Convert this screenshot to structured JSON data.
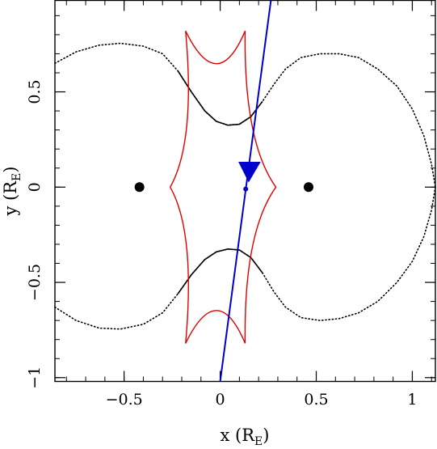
{
  "chart_data": {
    "type": "line",
    "xlabel": {
      "main": "x (R",
      "sub": "E",
      "close": ")"
    },
    "ylabel": {
      "main": "y (R",
      "sub": "E",
      "close": ")"
    },
    "xlim": [
      -0.86,
      1.12
    ],
    "ylim": [
      -1.02,
      0.98
    ],
    "x_ticks": [
      {
        "value": -0.5,
        "label": "−0.5"
      },
      {
        "value": 0,
        "label": "0"
      },
      {
        "value": 0.5,
        "label": "0.5"
      },
      {
        "value": 1,
        "label": "1"
      }
    ],
    "y_ticks": [
      {
        "value": -1,
        "label": "−1"
      },
      {
        "value": -0.5,
        "label": "−0.5"
      },
      {
        "value": 0,
        "label": "0"
      },
      {
        "value": 0.5,
        "label": "0.5"
      }
    ],
    "x_minor_step": 0.1,
    "y_minor_step": 0.1,
    "grid": false,
    "legend": "none",
    "colors": {
      "critical_curve": "#000000",
      "caustic": "#dd0000",
      "trajectory": "#0000cc",
      "lens": "#000000"
    },
    "lens_masses": [
      {
        "x": -0.42,
        "y": 0.0
      },
      {
        "x": 0.46,
        "y": 0.0
      }
    ],
    "critical_curve_upper": [
      [
        -0.86,
        0.65
      ],
      [
        -0.75,
        0.71
      ],
      [
        -0.63,
        0.745
      ],
      [
        -0.52,
        0.755
      ],
      [
        -0.4,
        0.74
      ],
      [
        -0.3,
        0.7
      ],
      [
        -0.22,
        0.61
      ],
      [
        -0.15,
        0.5
      ],
      [
        -0.08,
        0.4
      ],
      [
        -0.02,
        0.345
      ],
      [
        0.04,
        0.325
      ],
      [
        0.1,
        0.33
      ],
      [
        0.16,
        0.37
      ],
      [
        0.22,
        0.45
      ],
      [
        0.28,
        0.54
      ],
      [
        0.34,
        0.62
      ],
      [
        0.42,
        0.68
      ],
      [
        0.52,
        0.7
      ],
      [
        0.62,
        0.7
      ],
      [
        0.72,
        0.68
      ],
      [
        0.82,
        0.62
      ],
      [
        0.92,
        0.53
      ],
      [
        1.0,
        0.41
      ],
      [
        1.06,
        0.27
      ],
      [
        1.1,
        0.12
      ],
      [
        1.12,
        0.0
      ]
    ],
    "critical_curve_lower": [
      [
        -0.86,
        -0.63
      ],
      [
        -0.75,
        -0.7
      ],
      [
        -0.63,
        -0.74
      ],
      [
        -0.52,
        -0.745
      ],
      [
        -0.4,
        -0.72
      ],
      [
        -0.3,
        -0.66
      ],
      [
        -0.22,
        -0.56
      ],
      [
        -0.15,
        -0.46
      ],
      [
        -0.08,
        -0.38
      ],
      [
        -0.02,
        -0.34
      ],
      [
        0.04,
        -0.325
      ],
      [
        0.1,
        -0.33
      ],
      [
        0.16,
        -0.37
      ],
      [
        0.22,
        -0.45
      ],
      [
        0.28,
        -0.55
      ],
      [
        0.34,
        -0.63
      ],
      [
        0.42,
        -0.685
      ],
      [
        0.52,
        -0.7
      ],
      [
        0.62,
        -0.69
      ],
      [
        0.72,
        -0.66
      ],
      [
        0.82,
        -0.6
      ],
      [
        0.92,
        -0.5
      ],
      [
        1.0,
        -0.39
      ],
      [
        1.06,
        -0.26
      ],
      [
        1.1,
        -0.12
      ],
      [
        1.12,
        0.0
      ]
    ],
    "critical_curve_solid_range": [
      -0.2,
      0.2
    ],
    "caustic_cusps": [
      [
        -0.18,
        0.82
      ],
      [
        0.13,
        0.82
      ],
      [
        0.29,
        0.0
      ],
      [
        0.13,
        -0.82
      ],
      [
        -0.18,
        -0.82
      ],
      [
        -0.26,
        0.0
      ]
    ],
    "trajectory_line": [
      [
        0.0,
        -1.02
      ],
      [
        0.264,
        0.98
      ]
    ],
    "trajectory_arrow": {
      "x": 0.14,
      "y": 0.08,
      "dx": -0.035,
      "dy": -0.25
    },
    "source_point": {
      "x": 0.133,
      "y": -0.01
    }
  }
}
